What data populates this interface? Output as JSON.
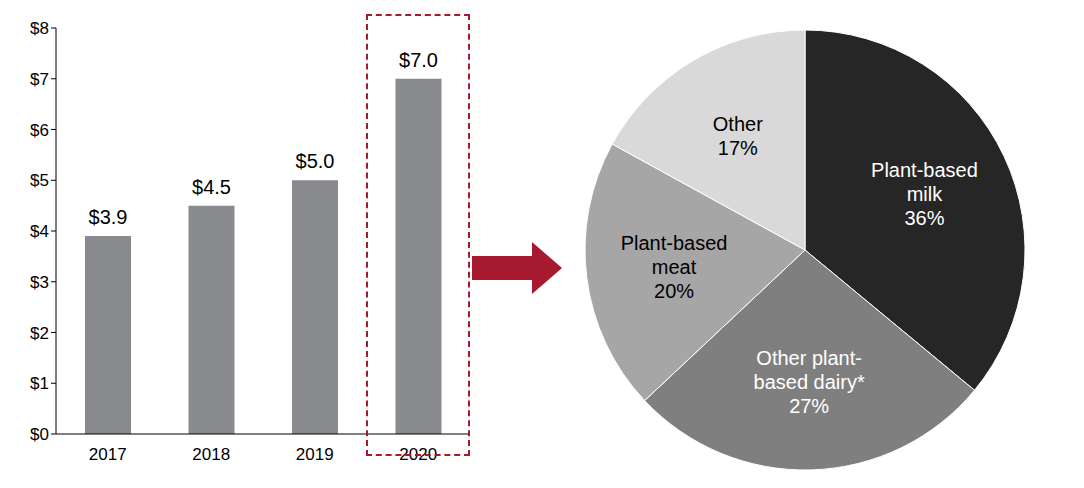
{
  "chart_data": [
    {
      "type": "bar",
      "categories": [
        "2017",
        "2018",
        "2019",
        "2020"
      ],
      "values": [
        3.9,
        4.5,
        5.0,
        7.0
      ],
      "value_labels": [
        "$3.9",
        "$4.5",
        "$5.0",
        "$7.0"
      ],
      "data_labels": true,
      "color": "#898a8d",
      "ylim": [
        0,
        8
      ],
      "yticks": [
        {
          "value": 0,
          "label": "$0"
        },
        {
          "value": 1,
          "label": "$1"
        },
        {
          "value": 2,
          "label": "$2"
        },
        {
          "value": 3,
          "label": "$3"
        },
        {
          "value": 4,
          "label": "$4"
        },
        {
          "value": 5,
          "label": "$5"
        },
        {
          "value": 6,
          "label": "$6"
        },
        {
          "value": 7,
          "label": "$7"
        },
        {
          "value": 8,
          "label": "$8"
        }
      ],
      "grid": false
    },
    {
      "type": "pie",
      "categories": [
        "Plant-based milk",
        "Other plant-based dairy*",
        "Plant-based meat",
        "Other"
      ],
      "values": [
        36,
        27,
        20,
        17
      ],
      "value_labels": [
        "36%",
        "27%",
        "20%",
        "17%"
      ],
      "data_labels": true,
      "colors": [
        "#262626",
        "#7f7f7f",
        "#a6a6a6",
        "#d9d9d9"
      ]
    }
  ]
}
